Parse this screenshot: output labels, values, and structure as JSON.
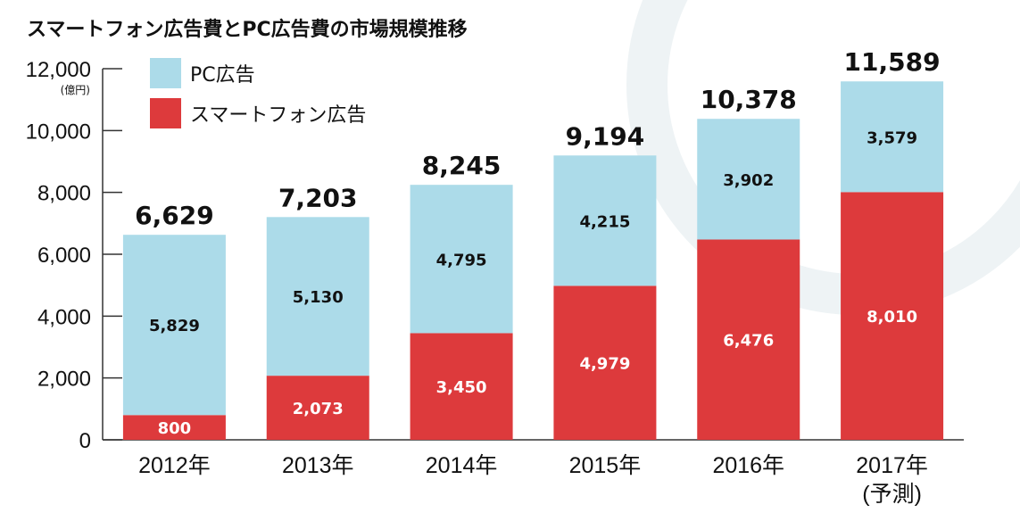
{
  "chart_data": {
    "type": "bar",
    "stacked": true,
    "title": "スマートフォン広告費とPC広告費の市場規模推移",
    "unit_label": "(億円)",
    "ylim": [
      0,
      12000
    ],
    "yticks": [
      "0",
      "2,000",
      "4,000",
      "6,000",
      "8,000",
      "10,000",
      "12,000"
    ],
    "categories": [
      "2012年",
      "2013年",
      "2014年",
      "2015年",
      "2016年",
      "2017年"
    ],
    "category_notes": [
      "",
      "",
      "",
      "",
      "",
      "(予測)"
    ],
    "series": [
      {
        "name": "スマートフォン広告",
        "color": "#dd3a3c",
        "label_color": "#ffffff",
        "values": [
          800,
          2073,
          3450,
          4979,
          6476,
          8010
        ],
        "labels": [
          "800",
          "2,073",
          "3,450",
          "4,979",
          "6,476",
          "8,010"
        ]
      },
      {
        "name": "PC広告",
        "color": "#acdbe9",
        "label_color": "#111111",
        "values": [
          5829,
          5130,
          4795,
          4215,
          3902,
          3579
        ],
        "labels": [
          "5,829",
          "5,130",
          "4,795",
          "4,215",
          "3,902",
          "3,579"
        ]
      }
    ],
    "totals": [
      6629,
      7203,
      8245,
      9194,
      10378,
      11589
    ],
    "total_labels": [
      "6,629",
      "7,203",
      "8,245",
      "9,194",
      "10,378",
      "11,589"
    ],
    "legend": {
      "position": "top-left"
    },
    "grid": false
  }
}
